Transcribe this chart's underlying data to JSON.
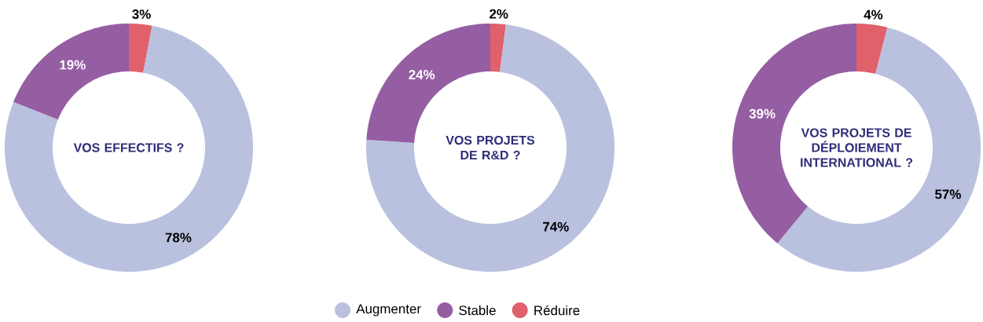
{
  "chart_data": [
    {
      "type": "donut",
      "title": "VOS EFFECTIFS ?",
      "categories": [
        "Réduire",
        "Augmenter",
        "Stable"
      ],
      "values": [
        3,
        78,
        19
      ],
      "value_labels": [
        "3%",
        "78%",
        "19%"
      ],
      "colors": [
        "#e0606c",
        "#b9c1df",
        "#955ea2"
      ],
      "legend": "bottom"
    },
    {
      "type": "donut",
      "title": "VOS PROJETS DE R&D ?",
      "categories": [
        null,
        null,
        null
      ],
      "values": [
        2,
        74,
        24
      ],
      "value_labels": [
        "2%",
        "74%",
        "24%"
      ],
      "colors": [
        "#e0606c",
        "#b9c1df",
        "#955ea2"
      ]
    },
    {
      "type": "donut",
      "title": "VOS PROJETS DE DÉPLOIEMENT INTERNATIONAL ?",
      "categories": [
        null,
        null,
        null
      ],
      "values": [
        4,
        57,
        39
      ],
      "value_labels": [
        "4%",
        "57%",
        "39%"
      ],
      "colors": [
        "#e0606c",
        "#b9c1df",
        "#955ea2"
      ]
    }
  ]
}
